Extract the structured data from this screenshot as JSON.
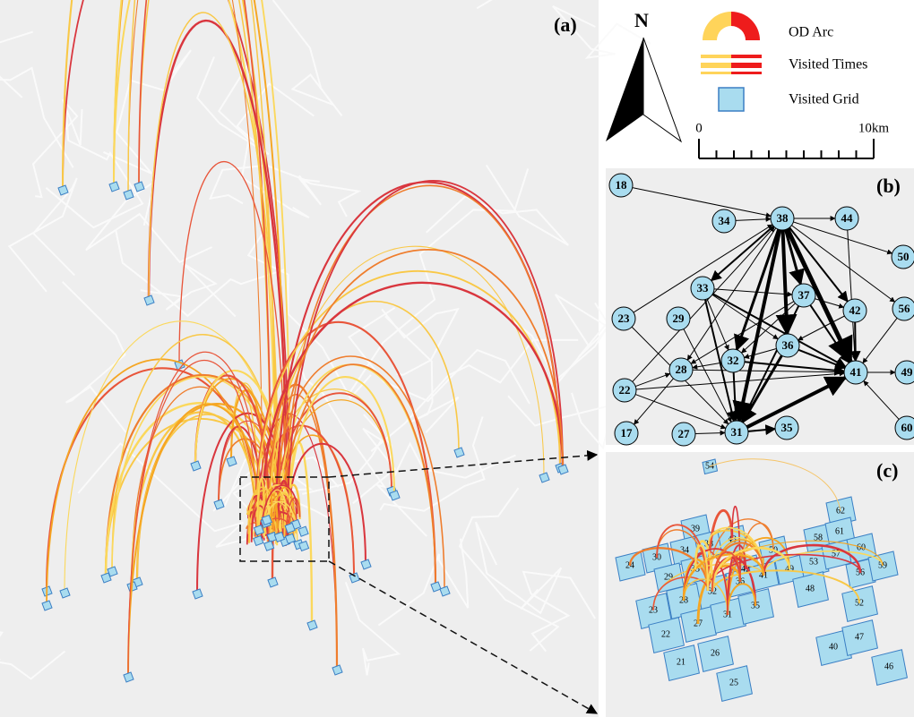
{
  "panel_a": {
    "label": "(a)"
  },
  "legend": {
    "north": "N",
    "od_arc": "OD Arc",
    "visited_times": "Visited Times",
    "visited_grid": "Visited Grid",
    "scale_start": "0",
    "scale_end": "10km"
  },
  "panel_b": {
    "label": "(b)",
    "nodes": [
      "18",
      "34",
      "38",
      "44",
      "50",
      "33",
      "37",
      "42",
      "56",
      "23",
      "29",
      "36",
      "32",
      "28",
      "41",
      "49",
      "22",
      "17",
      "27",
      "31",
      "35",
      "60"
    ]
  },
  "panel_c": {
    "label": "(c)",
    "grids": [
      "54",
      "62",
      "58",
      "61",
      "60",
      "39",
      "34",
      "38",
      "43",
      "50",
      "24",
      "30",
      "33",
      "42",
      "49",
      "53",
      "57",
      "56",
      "59",
      "29",
      "32",
      "36",
      "41",
      "48",
      "23",
      "28",
      "27",
      "31",
      "35",
      "52",
      "22",
      "21",
      "26",
      "40",
      "47",
      "46",
      "25"
    ]
  }
}
